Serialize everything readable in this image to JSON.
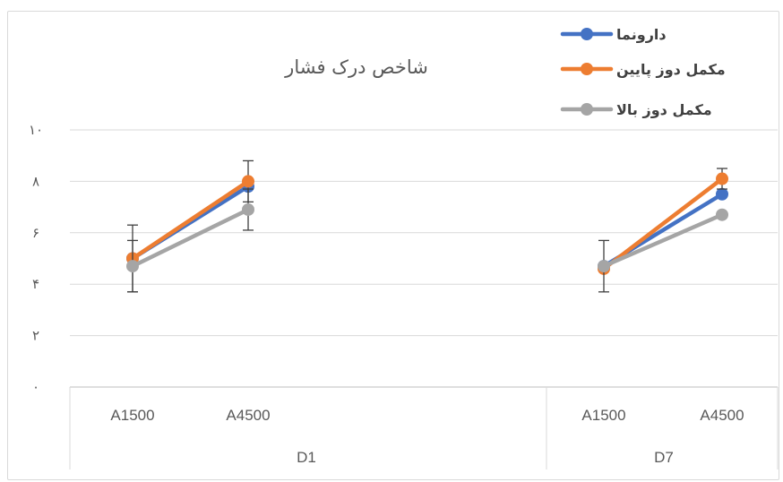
{
  "chart_data": {
    "type": "line",
    "title": "شاخص درک فشار",
    "xlabel": "",
    "ylabel": "",
    "ylim": [
      0,
      10
    ],
    "yticks": [
      0,
      2,
      4,
      6,
      8,
      10
    ],
    "ytick_labels": [
      "۰",
      "۲",
      "۴",
      "۶",
      "۸",
      "۱۰"
    ],
    "grid": true,
    "legend_position": "top-right",
    "groups": [
      {
        "label": "D1",
        "categories": [
          "A1500",
          "A4500"
        ]
      },
      {
        "label": "D7",
        "categories": [
          "A1500",
          "A4500"
        ]
      }
    ],
    "series": [
      {
        "name": "دارونما",
        "color": "#4472C4",
        "values": [
          [
            5.0,
            7.8
          ],
          [
            4.7,
            7.5
          ]
        ],
        "errors": [
          [
            1.3,
            0.0
          ],
          [
            0.0,
            0.0
          ]
        ]
      },
      {
        "name": "مکمل دوز پایین",
        "color": "#ED7D31",
        "values": [
          [
            5.0,
            8.0
          ],
          [
            4.6,
            8.1
          ]
        ],
        "errors": [
          [
            0.0,
            0.8
          ],
          [
            0.0,
            0.4
          ]
        ]
      },
      {
        "name": "مکمل دوز بالا",
        "color": "#A5A5A5",
        "values": [
          [
            4.7,
            6.9
          ],
          [
            4.7,
            6.7
          ]
        ],
        "errors": [
          [
            1.0,
            0.8
          ],
          [
            1.0,
            0.0
          ]
        ]
      }
    ]
  }
}
